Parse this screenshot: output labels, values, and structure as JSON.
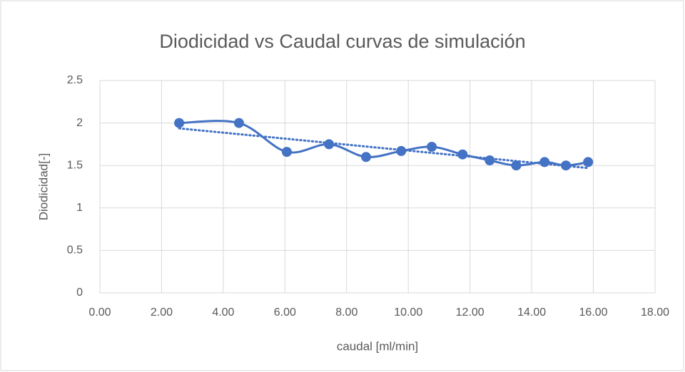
{
  "chart_data": {
    "type": "scatter",
    "title": "Diodicidad vs Caudal curvas de simulación",
    "x_label": "caudal  [ml/min]",
    "y_label": "Diodicidad[-]",
    "series": [
      {
        "color": "#4472c4",
        "x": [
          2.57,
          4.51,
          6.06,
          7.43,
          8.63,
          9.77,
          10.76,
          11.76,
          12.64,
          13.5,
          14.42,
          15.11,
          15.83
        ],
        "values": [
          2.0,
          2.0,
          1.66,
          1.75,
          1.6,
          1.67,
          1.72,
          1.63,
          1.56,
          1.5,
          1.54,
          1.5,
          1.54
        ]
      }
    ],
    "smooth_line": true,
    "trendline": "linear",
    "xlim": [
      0,
      18
    ],
    "xticks": [
      {
        "value": 0,
        "label": "0.00"
      },
      {
        "value": 2,
        "label": "2.00"
      },
      {
        "value": 4,
        "label": "4.00"
      },
      {
        "value": 6,
        "label": "6.00"
      },
      {
        "value": 8,
        "label": "8.00"
      },
      {
        "value": 10,
        "label": "10.00"
      },
      {
        "value": 12,
        "label": "12.00"
      },
      {
        "value": 14,
        "label": "14.00"
      },
      {
        "value": 16,
        "label": "16.00"
      },
      {
        "value": 18,
        "label": "18.00"
      }
    ],
    "ylim": [
      0,
      2.5
    ],
    "yticks": [
      0,
      0.5,
      1,
      1.5,
      2,
      2.5
    ],
    "grid": true
  }
}
